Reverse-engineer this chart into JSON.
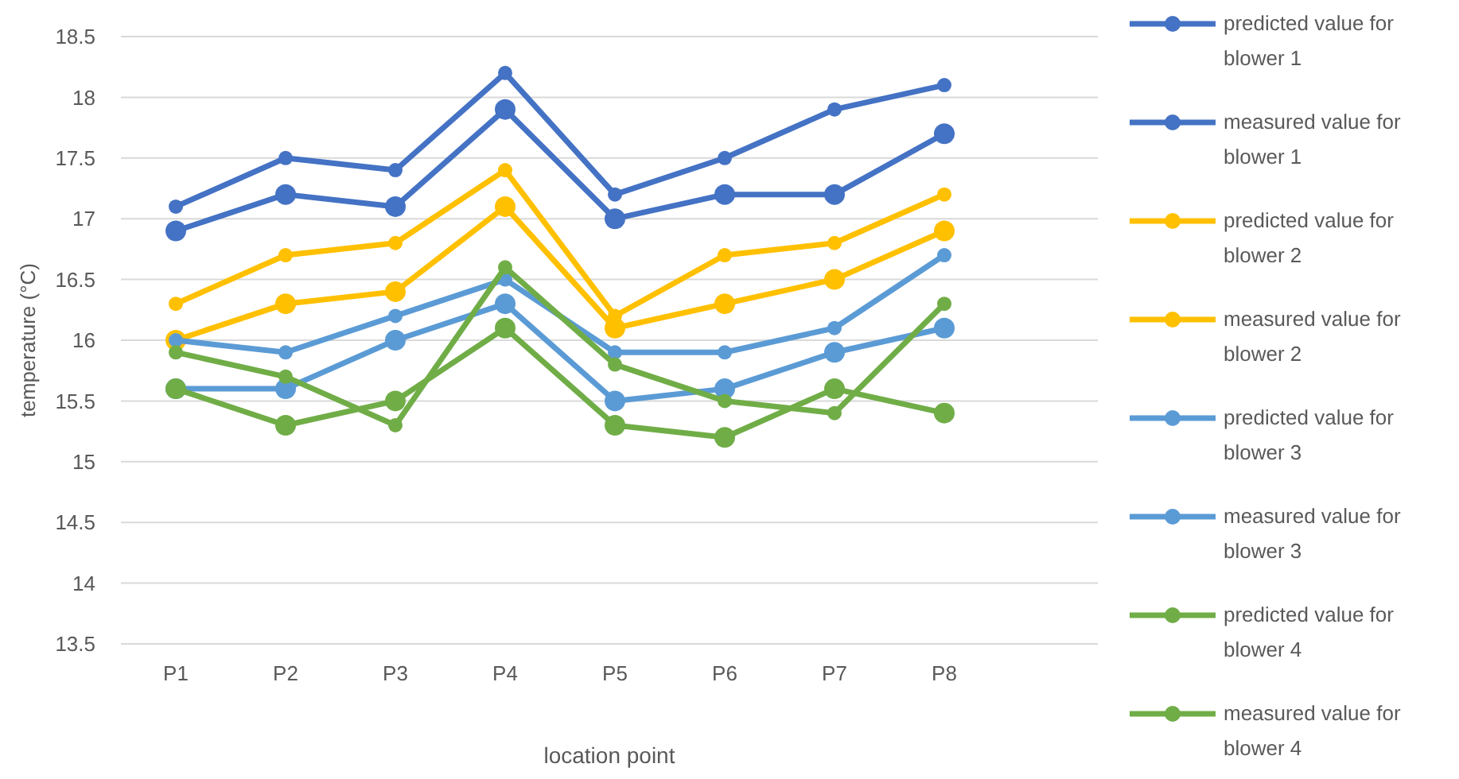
{
  "chart_data": {
    "type": "line",
    "xlabel": "location point",
    "ylabel": "temperature (°C)",
    "categories": [
      "P1",
      "P2",
      "P3",
      "P4",
      "P5",
      "P6",
      "P7",
      "P8"
    ],
    "ylim": [
      13.5,
      18.5
    ],
    "yticks": [
      13.5,
      14,
      14.5,
      15,
      15.5,
      16,
      16.5,
      17,
      17.5,
      18,
      18.5
    ],
    "grid": "y",
    "legend": "right",
    "marker": "circle",
    "line_style": "solid",
    "series": [
      {
        "name": "predicted value for blower 1",
        "color": "#4472c4",
        "values": [
          17.1,
          17.5,
          17.4,
          18.2,
          17.2,
          17.5,
          17.9,
          18.1
        ]
      },
      {
        "name": "measured value for blower 1",
        "color": "#4472c4",
        "values": [
          16.9,
          17.2,
          17.1,
          17.9,
          17.0,
          17.2,
          17.2,
          17.7
        ]
      },
      {
        "name": "predicted value for blower 2",
        "color": "#ffc000",
        "values": [
          16.3,
          16.7,
          16.8,
          17.4,
          16.2,
          16.7,
          16.8,
          17.2
        ]
      },
      {
        "name": "measured value for blower 2",
        "color": "#ffc000",
        "values": [
          16.0,
          16.3,
          16.4,
          17.1,
          16.1,
          16.3,
          16.5,
          16.9
        ]
      },
      {
        "name": "predicted value for blower 3",
        "color": "#5b9bd5",
        "values": [
          16.0,
          15.9,
          16.2,
          16.5,
          15.9,
          15.9,
          16.1,
          16.7
        ]
      },
      {
        "name": "measured value for blower 3",
        "color": "#5b9bd5",
        "values": [
          15.6,
          15.6,
          16.0,
          16.3,
          15.5,
          15.6,
          15.9,
          16.1
        ]
      },
      {
        "name": "predicted value for blower 4",
        "color": "#70ad47",
        "values": [
          15.9,
          15.7,
          15.3,
          16.6,
          15.8,
          15.5,
          15.4,
          16.3
        ]
      },
      {
        "name": "measured value for blower 4",
        "color": "#70ad47",
        "values": [
          15.6,
          15.3,
          15.5,
          16.1,
          15.3,
          15.2,
          15.6,
          15.4
        ]
      }
    ]
  }
}
